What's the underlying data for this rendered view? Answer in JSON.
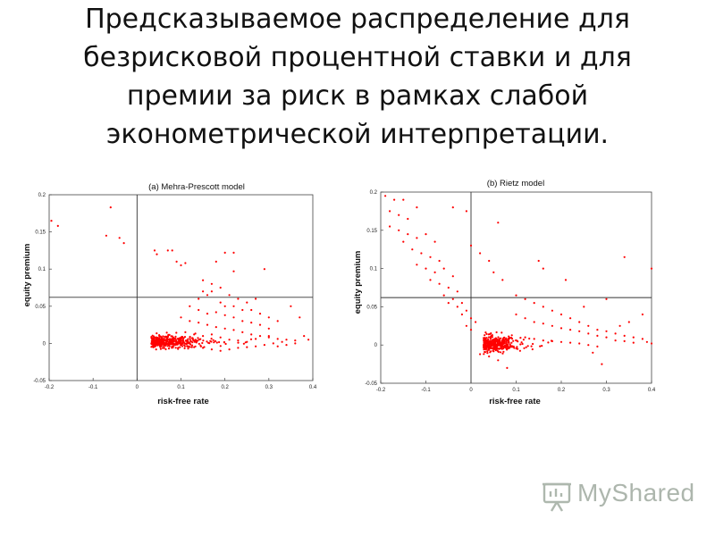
{
  "slide": {
    "title_lines": [
      "Предсказываемое распределение для",
      "безрисковой процентной ставки и для",
      "премии за риск в рамках слабой",
      "эконометрической интерпретации."
    ]
  },
  "watermark": {
    "text": "MyShared",
    "icon": "presentation-board-icon"
  },
  "chart_data": [
    {
      "type": "scatter",
      "title": "(a)  Mehra-Prescott model",
      "xlabel": "risk-free rate",
      "ylabel": "equity premium",
      "xlim": [
        -0.2,
        0.4
      ],
      "ylim": [
        -0.05,
        0.2
      ],
      "xticks": [
        "-0.2",
        "-0.1",
        "0",
        "0.1",
        "0.2",
        "0.3",
        "0.4"
      ],
      "yticks": [
        "-0.05",
        "0",
        "0.05",
        "0.1",
        "0.15",
        "0.2"
      ],
      "xtick_values": [
        -0.2,
        -0.1,
        0,
        0.1,
        0.2,
        0.3,
        0.4
      ],
      "ytick_values": [
        -0.05,
        0,
        0.05,
        0.1,
        0.15,
        0.2
      ],
      "reference_lines": {
        "vertical_x": 0.0,
        "horizontal_y": 0.062
      },
      "point_color": "#ff0000",
      "grid": false,
      "points": [
        [
          -0.195,
          0.165
        ],
        [
          -0.18,
          0.158
        ],
        [
          -0.06,
          0.183
        ],
        [
          -0.07,
          0.145
        ],
        [
          -0.04,
          0.142
        ],
        [
          -0.03,
          0.135
        ],
        [
          0.04,
          0.125
        ],
        [
          0.045,
          0.12
        ],
        [
          0.07,
          0.125
        ],
        [
          0.08,
          0.125
        ],
        [
          0.09,
          0.11
        ],
        [
          0.1,
          0.105
        ],
        [
          0.11,
          0.108
        ],
        [
          0.18,
          0.11
        ],
        [
          0.2,
          0.122
        ],
        [
          0.22,
          0.122
        ],
        [
          0.22,
          0.097
        ],
        [
          0.29,
          0.1
        ],
        [
          0.15,
          0.085
        ],
        [
          0.17,
          0.08
        ],
        [
          0.19,
          0.075
        ],
        [
          0.15,
          0.07
        ],
        [
          0.16,
          0.065
        ],
        [
          0.17,
          0.07
        ],
        [
          0.14,
          0.06
        ],
        [
          0.21,
          0.065
        ],
        [
          0.23,
          0.06
        ],
        [
          0.25,
          0.055
        ],
        [
          0.27,
          0.06
        ],
        [
          0.19,
          0.055
        ],
        [
          0.2,
          0.05
        ],
        [
          0.22,
          0.05
        ],
        [
          0.24,
          0.045
        ],
        [
          0.26,
          0.045
        ],
        [
          0.28,
          0.04
        ],
        [
          0.3,
          0.035
        ],
        [
          0.32,
          0.03
        ],
        [
          0.12,
          0.05
        ],
        [
          0.14,
          0.045
        ],
        [
          0.16,
          0.04
        ],
        [
          0.18,
          0.042
        ],
        [
          0.2,
          0.038
        ],
        [
          0.22,
          0.035
        ],
        [
          0.24,
          0.03
        ],
        [
          0.26,
          0.028
        ],
        [
          0.28,
          0.025
        ],
        [
          0.3,
          0.02
        ],
        [
          0.1,
          0.035
        ],
        [
          0.12,
          0.03
        ],
        [
          0.14,
          0.028
        ],
        [
          0.16,
          0.025
        ],
        [
          0.18,
          0.022
        ],
        [
          0.2,
          0.02
        ],
        [
          0.22,
          0.018
        ],
        [
          0.24,
          0.015
        ],
        [
          0.26,
          0.012
        ],
        [
          0.28,
          0.01
        ],
        [
          0.3,
          0.008
        ],
        [
          0.32,
          0.006
        ],
        [
          0.34,
          0.005
        ],
        [
          0.36,
          0.004
        ],
        [
          0.38,
          0.01
        ],
        [
          0.35,
          0.05
        ],
        [
          0.37,
          0.035
        ],
        [
          0.33,
          0.002
        ],
        [
          0.31,
          0.0
        ],
        [
          0.29,
          -0.002
        ],
        [
          0.27,
          -0.004
        ],
        [
          0.25,
          -0.005
        ],
        [
          0.23,
          -0.006
        ],
        [
          0.21,
          -0.008
        ],
        [
          0.19,
          -0.01
        ],
        [
          0.17,
          -0.008
        ],
        [
          0.15,
          -0.006
        ],
        [
          0.13,
          -0.005
        ],
        [
          0.11,
          0.015
        ],
        [
          0.13,
          0.012
        ],
        [
          0.15,
          0.01
        ],
        [
          0.17,
          0.012
        ],
        [
          0.19,
          0.008
        ],
        [
          0.21,
          0.005
        ],
        [
          0.23,
          0.004
        ],
        [
          0.25,
          0.002
        ],
        [
          0.27,
          0.006
        ],
        [
          0.39,
          0.005
        ],
        [
          0.36,
          0.0
        ],
        [
          0.34,
          -0.002
        ],
        [
          0.32,
          -0.004
        ],
        [
          0.3,
          0.01
        ]
      ],
      "dense_cluster": {
        "center": [
          0.05,
          0.002
        ],
        "spread": [
          0.05,
          0.004
        ],
        "count": 420,
        "seed": 7
      }
    },
    {
      "type": "scatter",
      "title": "(b)  Rietz model",
      "xlabel": "risk-free rate",
      "ylabel": "equity premium",
      "xlim": [
        -0.2,
        0.4
      ],
      "ylim": [
        -0.05,
        0.2
      ],
      "xticks": [
        "-0.2",
        "-0.1",
        "0",
        "0.1",
        "0.2",
        "0.3",
        "0.4"
      ],
      "yticks": [
        "-0.05",
        "0",
        "0.05",
        "0.1",
        "0.15",
        "0.2"
      ],
      "xtick_values": [
        -0.2,
        -0.1,
        0,
        0.1,
        0.2,
        0.3,
        0.4
      ],
      "ytick_values": [
        -0.05,
        0,
        0.05,
        0.1,
        0.15,
        0.2
      ],
      "reference_lines": {
        "vertical_x": 0.0,
        "horizontal_y": 0.062
      },
      "point_color": "#ff0000",
      "grid": false,
      "points": [
        [
          -0.19,
          0.195
        ],
        [
          -0.17,
          0.19
        ],
        [
          -0.15,
          0.19
        ],
        [
          -0.18,
          0.175
        ],
        [
          -0.16,
          0.17
        ],
        [
          -0.14,
          0.165
        ],
        [
          -0.12,
          0.18
        ],
        [
          -0.18,
          0.155
        ],
        [
          -0.16,
          0.15
        ],
        [
          -0.14,
          0.145
        ],
        [
          -0.12,
          0.14
        ],
        [
          -0.1,
          0.145
        ],
        [
          -0.08,
          0.135
        ],
        [
          -0.15,
          0.135
        ],
        [
          -0.13,
          0.125
        ],
        [
          -0.11,
          0.12
        ],
        [
          -0.09,
          0.115
        ],
        [
          -0.07,
          0.11
        ],
        [
          -0.12,
          0.105
        ],
        [
          -0.1,
          0.1
        ],
        [
          -0.08,
          0.095
        ],
        [
          -0.06,
          0.1
        ],
        [
          -0.04,
          0.09
        ],
        [
          -0.09,
          0.085
        ],
        [
          -0.07,
          0.08
        ],
        [
          -0.05,
          0.075
        ],
        [
          -0.03,
          0.07
        ],
        [
          -0.06,
          0.065
        ],
        [
          -0.04,
          0.06
        ],
        [
          -0.02,
          0.055
        ],
        [
          -0.05,
          0.055
        ],
        [
          -0.03,
          0.05
        ],
        [
          -0.01,
          0.045
        ],
        [
          -0.02,
          0.04
        ],
        [
          0.0,
          0.035
        ],
        [
          0.01,
          0.03
        ],
        [
          -0.01,
          0.025
        ],
        [
          0.0,
          0.02
        ],
        [
          -0.04,
          0.18
        ],
        [
          -0.01,
          0.175
        ],
        [
          0.06,
          0.16
        ],
        [
          0.0,
          0.13
        ],
        [
          0.02,
          0.12
        ],
        [
          0.04,
          0.11
        ],
        [
          0.05,
          0.095
        ],
        [
          0.07,
          0.085
        ],
        [
          0.15,
          0.11
        ],
        [
          0.16,
          0.1
        ],
        [
          0.21,
          0.085
        ],
        [
          0.3,
          0.06
        ],
        [
          0.34,
          0.115
        ],
        [
          0.4,
          0.1
        ],
        [
          0.1,
          0.065
        ],
        [
          0.12,
          0.06
        ],
        [
          0.14,
          0.055
        ],
        [
          0.16,
          0.05
        ],
        [
          0.18,
          0.045
        ],
        [
          0.2,
          0.04
        ],
        [
          0.22,
          0.035
        ],
        [
          0.24,
          0.03
        ],
        [
          0.26,
          0.025
        ],
        [
          0.28,
          0.02
        ],
        [
          0.3,
          0.018
        ],
        [
          0.32,
          0.015
        ],
        [
          0.34,
          0.012
        ],
        [
          0.36,
          0.01
        ],
        [
          0.38,
          0.008
        ],
        [
          0.38,
          0.04
        ],
        [
          0.1,
          0.04
        ],
        [
          0.12,
          0.035
        ],
        [
          0.14,
          0.03
        ],
        [
          0.16,
          0.028
        ],
        [
          0.18,
          0.025
        ],
        [
          0.2,
          0.022
        ],
        [
          0.22,
          0.02
        ],
        [
          0.24,
          0.018
        ],
        [
          0.26,
          0.015
        ],
        [
          0.28,
          0.012
        ],
        [
          0.3,
          0.01
        ],
        [
          0.32,
          0.006
        ],
        [
          0.34,
          0.005
        ],
        [
          0.36,
          0.003
        ],
        [
          0.39,
          0.004
        ],
        [
          0.4,
          0.002
        ],
        [
          0.12,
          0.01
        ],
        [
          0.14,
          0.008
        ],
        [
          0.16,
          0.006
        ],
        [
          0.18,
          0.005
        ],
        [
          0.2,
          0.004
        ],
        [
          0.22,
          0.003
        ],
        [
          0.24,
          0.002
        ],
        [
          0.26,
          0.0
        ],
        [
          0.28,
          -0.002
        ],
        [
          0.29,
          -0.025
        ],
        [
          0.27,
          -0.01
        ],
        [
          0.08,
          -0.03
        ],
        [
          0.06,
          -0.02
        ],
        [
          0.04,
          -0.015
        ],
        [
          0.02,
          -0.012
        ],
        [
          0.33,
          0.025
        ],
        [
          0.35,
          0.03
        ],
        [
          0.25,
          0.05
        ]
      ],
      "dense_cluster": {
        "center": [
          0.04,
          0.002
        ],
        "spread": [
          0.035,
          0.005
        ],
        "count": 380,
        "seed": 11
      }
    }
  ]
}
